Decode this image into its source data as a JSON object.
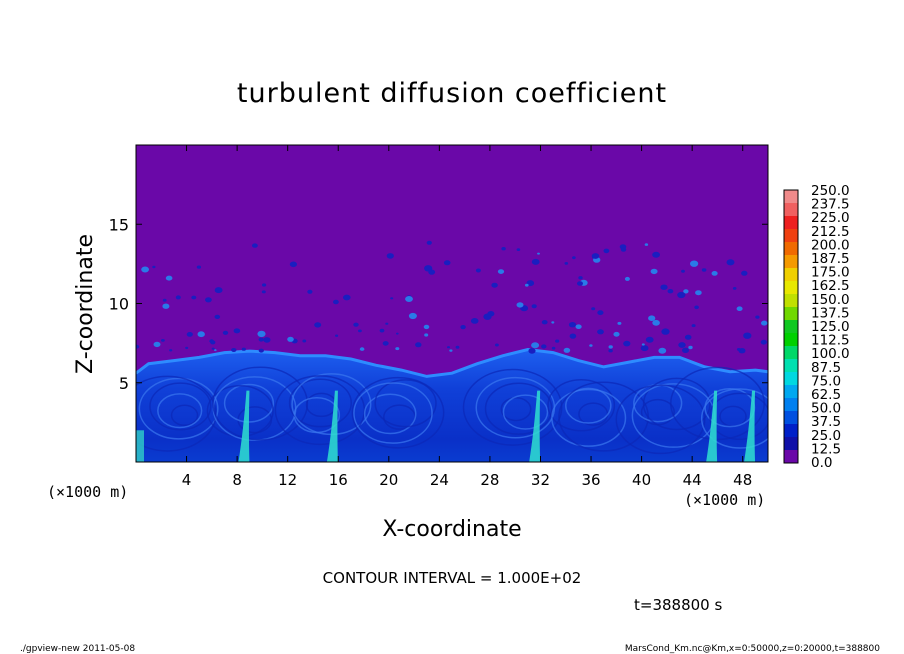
{
  "chart_data": {
    "type": "heatmap",
    "title": "turbulent diffusion coefficient",
    "xlabel": "X-coordinate",
    "ylabel": "Z-coordinate",
    "x_unit_left": "(×1000 m)",
    "x_unit_right": "(×1000 m)",
    "xlim": [
      0,
      50
    ],
    "ylim": [
      0,
      20
    ],
    "x_ticks": [
      "4",
      "8",
      "12",
      "16",
      "20",
      "24",
      "28",
      "32",
      "36",
      "40",
      "44",
      "48"
    ],
    "y_ticks": [
      "5",
      "10",
      "15"
    ],
    "colorbar_labels": [
      "250.0",
      "237.5",
      "225.0",
      "212.5",
      "200.0",
      "187.5",
      "175.0",
      "162.5",
      "150.0",
      "137.5",
      "125.0",
      "112.5",
      "100.0",
      "87.5",
      "75.0",
      "62.5",
      "50.0",
      "37.5",
      "25.0",
      "12.5",
      "0.0"
    ],
    "colorbar_colors": [
      "#f08a8a",
      "#f06060",
      "#ee2020",
      "#f04010",
      "#f06a00",
      "#f59a00",
      "#f0d000",
      "#e8e800",
      "#c0e000",
      "#70d800",
      "#10c820",
      "#00d000",
      "#00d868",
      "#00e0b0",
      "#00d8e0",
      "#00a8f0",
      "#0080f0",
      "#0050e0",
      "#0020c8",
      "#1010a8",
      "#6a08a8"
    ],
    "background_color": "#6a08a8",
    "contour_interval": "CONTOUR INTERVAL = 1.000E+02",
    "time": "t=388800 s",
    "mixed_layer_top": [
      [
        0,
        5.6
      ],
      [
        1,
        6.2
      ],
      [
        3,
        6.4
      ],
      [
        5,
        6.6
      ],
      [
        7,
        6.9
      ],
      [
        9,
        7.0
      ],
      [
        11,
        6.9
      ],
      [
        13,
        6.7
      ],
      [
        15,
        6.7
      ],
      [
        17,
        6.5
      ],
      [
        19,
        6.1
      ],
      [
        21,
        5.8
      ],
      [
        23,
        5.4
      ],
      [
        25,
        5.6
      ],
      [
        27,
        6.2
      ],
      [
        29,
        6.7
      ],
      [
        31,
        7.1
      ],
      [
        33,
        6.9
      ],
      [
        35,
        6.4
      ],
      [
        37,
        6.0
      ],
      [
        39,
        6.3
      ],
      [
        41,
        6.6
      ],
      [
        43,
        6.6
      ],
      [
        45,
        6.0
      ],
      [
        47,
        5.7
      ],
      [
        49,
        5.8
      ],
      [
        50,
        5.7
      ]
    ],
    "bright_plumes_x": [
      8.5,
      15.5,
      31.5,
      45.5,
      48.5
    ]
  },
  "footer": {
    "left": "./gpview-new   2011-05-08",
    "right": "MarsCond_Km.nc@Km,x=0:50000,z=0:20000,t=388800"
  }
}
